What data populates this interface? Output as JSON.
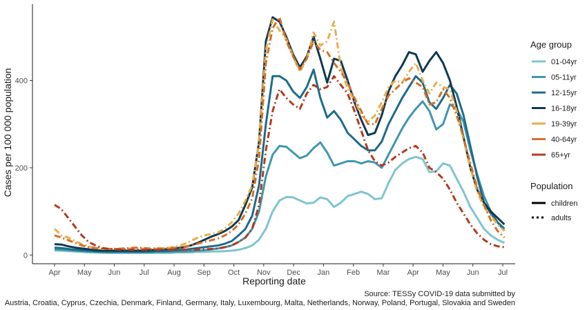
{
  "chart_data": {
    "type": "line",
    "xlabel": "Reporting date",
    "ylabel": "Cases per 100 000 population",
    "ylim": [
      -20,
      575
    ],
    "grid": false,
    "x_tick_labels": [
      "Apr",
      "May",
      "Jun",
      "Jul",
      "Aug",
      "Sep",
      "Oct",
      "Nov",
      "Dec",
      "Jan",
      "Feb",
      "Mar",
      "Apr",
      "May",
      "Jun",
      "Jul"
    ],
    "y_ticks": [
      0,
      200,
      400
    ],
    "x_week_start": 0,
    "x_week_end": 67,
    "legend_placement": "right",
    "legend_age_title": "Age group",
    "legend_population_title": "Population",
    "population_types": [
      {
        "name": "children",
        "style": "solid"
      },
      {
        "name": "adults",
        "style": "dotted"
      }
    ],
    "series": [
      {
        "name": "01-04yr",
        "population": "children",
        "color": "#7fc4cf",
        "values": [
          10,
          10,
          9,
          8,
          7,
          6,
          6,
          5,
          5,
          5,
          5,
          5,
          5,
          5,
          5,
          5,
          5,
          5,
          6,
          6,
          6,
          7,
          7,
          8,
          8,
          9,
          10,
          12,
          16,
          22,
          35,
          60,
          100,
          125,
          133,
          132,
          125,
          118,
          120,
          132,
          128,
          110,
          120,
          135,
          140,
          145,
          140,
          128,
          130,
          165,
          195,
          210,
          220,
          225,
          220,
          190,
          192,
          210,
          205,
          175,
          145,
          110,
          85,
          60,
          45,
          35,
          28
        ]
      },
      {
        "name": "05-11yr",
        "population": "children",
        "color": "#3f96ae",
        "values": [
          13,
          12,
          11,
          10,
          9,
          8,
          7,
          7,
          6,
          6,
          6,
          6,
          6,
          6,
          6,
          7,
          7,
          7,
          8,
          8,
          9,
          10,
          11,
          13,
          15,
          18,
          22,
          30,
          40,
          60,
          100,
          180,
          230,
          250,
          248,
          235,
          222,
          228,
          245,
          258,
          235,
          205,
          210,
          215,
          215,
          210,
          215,
          212,
          200,
          230,
          260,
          290,
          315,
          335,
          352,
          330,
          288,
          300,
          345,
          335,
          305,
          240,
          185,
          135,
          100,
          75,
          55
        ]
      },
      {
        "name": "12-15yr",
        "population": "children",
        "color": "#1d6b8b",
        "values": [
          17,
          16,
          14,
          12,
          11,
          10,
          9,
          8,
          8,
          8,
          8,
          8,
          8,
          8,
          8,
          9,
          9,
          10,
          11,
          12,
          14,
          16,
          18,
          20,
          22,
          26,
          32,
          45,
          60,
          90,
          160,
          300,
          410,
          410,
          400,
          375,
          360,
          385,
          425,
          360,
          315,
          330,
          310,
          280,
          265,
          250,
          240,
          240,
          260,
          300,
          330,
          360,
          385,
          410,
          395,
          350,
          335,
          360,
          390,
          370,
          320,
          250,
          180,
          120,
          95,
          75,
          60
        ]
      },
      {
        "name": "16-18yr",
        "population": "children",
        "color": "#0d3a52",
        "values": [
          25,
          24,
          20,
          17,
          15,
          13,
          11,
          10,
          10,
          10,
          10,
          10,
          10,
          10,
          11,
          12,
          13,
          14,
          16,
          18,
          22,
          28,
          35,
          42,
          48,
          55,
          65,
          80,
          115,
          155,
          260,
          490,
          545,
          535,
          500,
          460,
          430,
          455,
          500,
          450,
          395,
          450,
          445,
          400,
          350,
          310,
          275,
          280,
          320,
          375,
          410,
          435,
          465,
          460,
          420,
          445,
          465,
          440,
          400,
          340,
          270,
          200,
          150,
          120,
          100,
          85,
          70
        ]
      },
      {
        "name": "19-39yr",
        "population": "adults",
        "color": "#e6ae4e",
        "values": [
          60,
          45,
          40,
          32,
          25,
          20,
          16,
          14,
          14,
          14,
          14,
          15,
          16,
          15,
          14,
          15,
          16,
          17,
          20,
          25,
          32,
          40,
          45,
          48,
          52,
          60,
          75,
          95,
          125,
          160,
          260,
          470,
          540,
          515,
          495,
          455,
          420,
          450,
          510,
          480,
          490,
          535,
          430,
          380,
          355,
          320,
          305,
          320,
          350,
          385,
          400,
          395,
          420,
          440,
          400,
          370,
          395,
          385,
          380,
          330,
          265,
          200,
          145,
          110,
          90,
          70,
          55
        ]
      },
      {
        "name": "40-64yr",
        "population": "adults",
        "color": "#d46f25",
        "values": [
          45,
          40,
          34,
          28,
          22,
          18,
          16,
          14,
          14,
          14,
          15,
          16,
          17,
          16,
          15,
          15,
          15,
          16,
          17,
          19,
          22,
          26,
          30,
          34,
          38,
          45,
          55,
          70,
          95,
          130,
          220,
          440,
          520,
          545,
          490,
          455,
          425,
          450,
          490,
          470,
          465,
          440,
          420,
          395,
          360,
          330,
          300,
          300,
          335,
          365,
          380,
          395,
          405,
          395,
          385,
          345,
          350,
          380,
          360,
          320,
          270,
          210,
          155,
          115,
          80,
          55,
          40
        ]
      },
      {
        "name": "65+yr",
        "population": "adults",
        "color": "#b23a1f",
        "values": [
          115,
          105,
          85,
          65,
          45,
          30,
          22,
          16,
          14,
          13,
          12,
          12,
          12,
          12,
          12,
          12,
          12,
          12,
          12,
          12,
          12,
          12,
          13,
          14,
          15,
          18,
          22,
          30,
          40,
          60,
          115,
          240,
          330,
          380,
          360,
          345,
          335,
          370,
          390,
          380,
          385,
          410,
          390,
          370,
          330,
          285,
          240,
          215,
          205,
          212,
          225,
          235,
          245,
          250,
          235,
          200,
          190,
          175,
          150,
          120,
          95,
          70,
          50,
          35,
          25,
          20,
          18
        ]
      }
    ]
  },
  "source": {
    "line1": "Source: TESSy COVID-19 data submitted by",
    "line2": "Austria, Croatia, Cyprus, Czechia, Denmark, Finland, Germany, Italy, Luxembourg, Malta, Netherlands, Norway, Poland, Portugal, Slovakia and Sweden"
  }
}
